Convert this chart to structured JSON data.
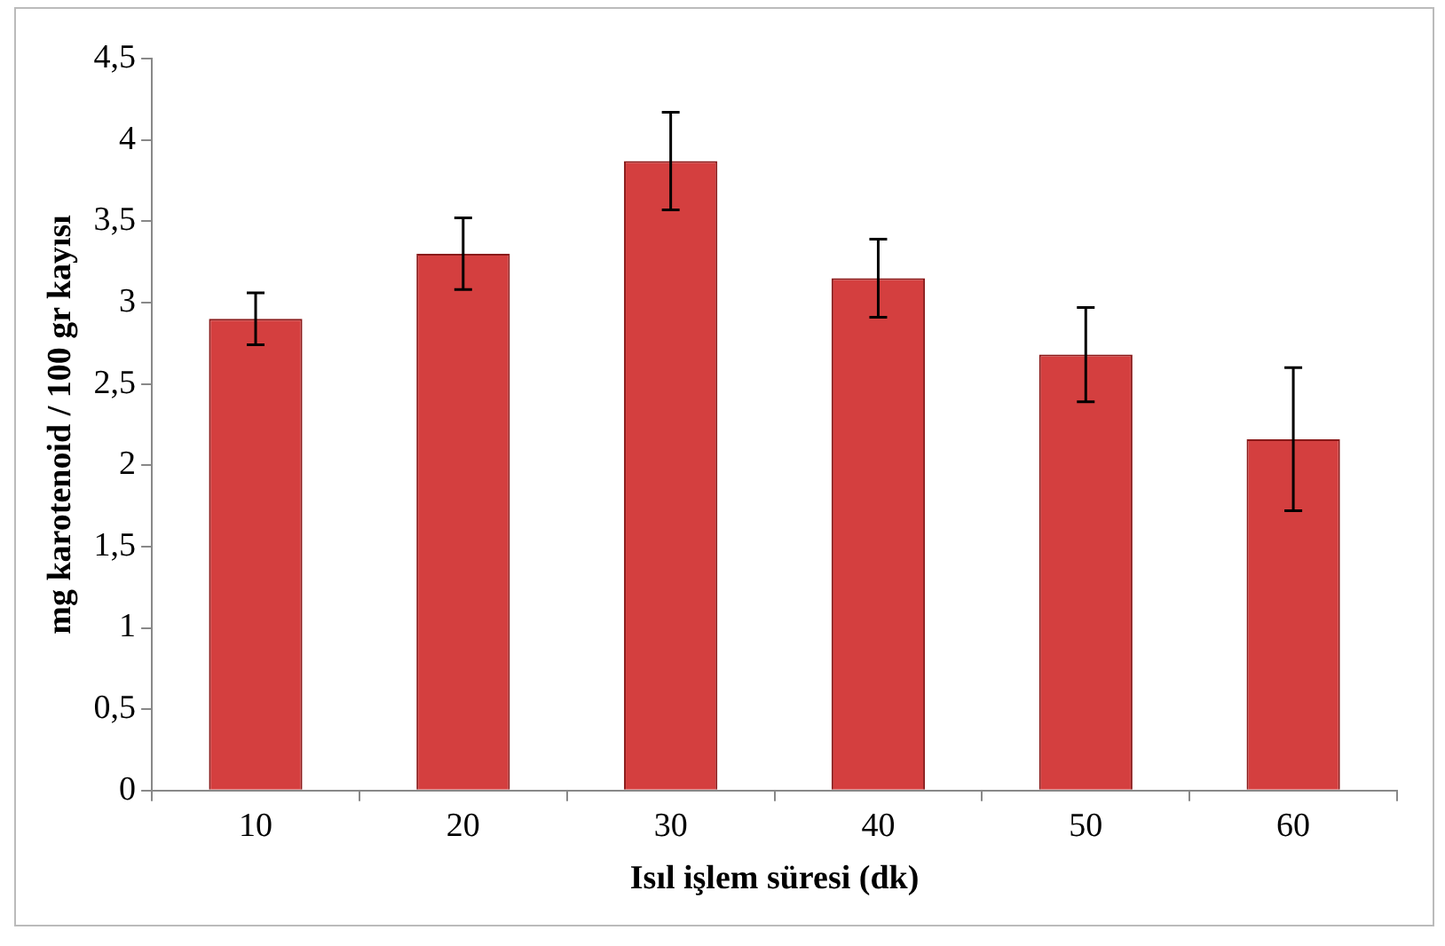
{
  "chart_data": {
    "type": "bar",
    "xlabel": "Isıl işlem süresi (dk)",
    "ylabel": "mg karotenoid / 100 gr kayısı",
    "categories": [
      "10",
      "20",
      "30",
      "40",
      "50",
      "60"
    ],
    "values": [
      2.9,
      3.3,
      3.87,
      3.15,
      2.68,
      2.16
    ],
    "errors": [
      0.16,
      0.22,
      0.3,
      0.24,
      0.29,
      0.44
    ],
    "color": "#d43f3f",
    "ylim": [
      0,
      4.5
    ],
    "yticks": [
      0,
      {
        "value": 0.5,
        "label": "0,5"
      },
      1,
      {
        "value": 1.5,
        "label": "1,5"
      },
      2,
      {
        "value": 2.5,
        "label": "2,5"
      },
      3,
      {
        "value": 3.5,
        "label": "3,5"
      },
      4,
      {
        "value": 4.5,
        "label": "4,5"
      }
    ],
    "grid": false,
    "legend": false
  }
}
